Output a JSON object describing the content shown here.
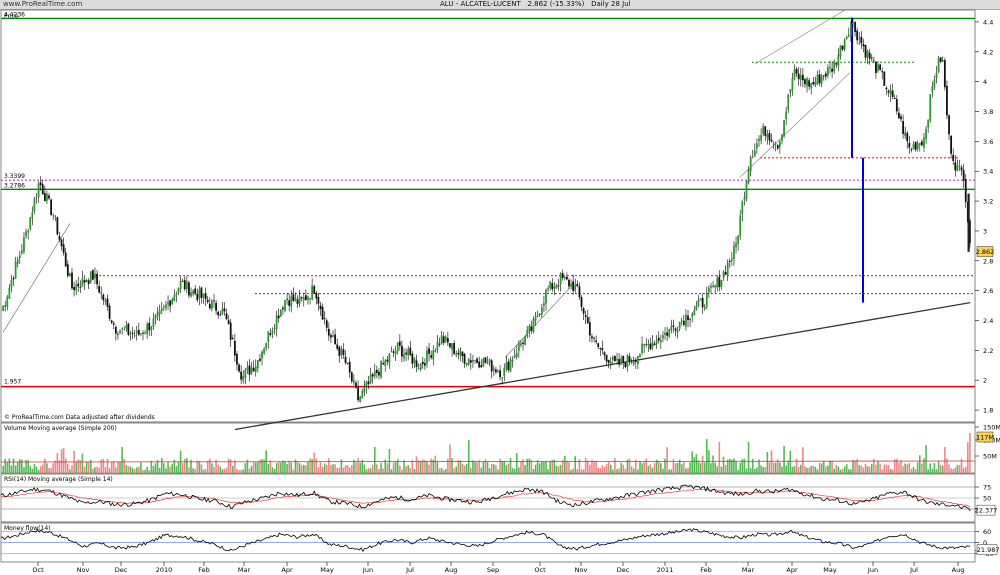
{
  "header": {
    "site": "www.ProRealTime.com",
    "title": "ALU - ALCATEL-LUCENT",
    "last": "2.862 (-15.33%)",
    "period": "Daily 28 Jul"
  },
  "chart_data": [
    {
      "type": "candlestick",
      "title": "Price",
      "ylim": [
        1.72,
        4.48
      ],
      "y_ticks": [
        1.8,
        2,
        2.2,
        2.4,
        2.6,
        2.8,
        3,
        3.2,
        3.4,
        3.6,
        3.8,
        4,
        4.2,
        4.4
      ],
      "x_tick_labels": [
        "Oct",
        "Nov",
        "Dec",
        "2010",
        "Feb",
        "Mar",
        "Apr",
        "May",
        "Jun",
        "Jul",
        "Aug",
        "Sep",
        "Oct",
        "Nov",
        "Dec",
        "2011",
        "Feb",
        "Mar",
        "Apr",
        "May",
        "Jun",
        "Jul",
        "Aug"
      ],
      "last_price": "2.862",
      "level_labels": [
        "4.4236",
        "3.3399",
        "3.2786",
        "1.957"
      ],
      "levels": [
        {
          "value": 4.4236,
          "color": "#008800",
          "style": "solid"
        },
        {
          "value": 3.3399,
          "color": "#cc33cc",
          "style": "dotted"
        },
        {
          "value": 3.2786,
          "color": "#008800",
          "style": "solid"
        },
        {
          "value": 1.957,
          "color": "#dd0000",
          "style": "solid"
        },
        {
          "value": 2.7,
          "color": "#ee2222",
          "style": "dotted"
        },
        {
          "value": 2.58,
          "color": "#3333cc",
          "style": "dotted"
        },
        {
          "value": 3.49,
          "color": "#ee2222",
          "style": "dotted"
        },
        {
          "value": 4.13,
          "color": "#009900",
          "style": "dotted"
        }
      ],
      "trendline": {
        "from": [
          "Mar 2010",
          1.67
        ],
        "to": [
          "Jul 2011",
          2.52
        ]
      },
      "note": "© ProRealTime.com   Data adjusted after dividends",
      "series": [
        {
          "name": "close",
          "points": [
            [
              "Sep 2009",
              2.34
            ],
            [
              "Oct 2009",
              2.95
            ],
            [
              "Oct 2009",
              3.33
            ],
            [
              "Oct 2009",
              3.1
            ],
            [
              "Nov 2009",
              2.62
            ],
            [
              "Nov 2009",
              2.7
            ],
            [
              "Dec 2009",
              2.35
            ],
            [
              "Dec 2009",
              2.3
            ],
            [
              "Jan 2010",
              2.42
            ],
            [
              "Jan 2010",
              2.65
            ],
            [
              "Feb 2010",
              2.55
            ],
            [
              "Feb 2010",
              2.45
            ],
            [
              "Mar 2010",
              2.02
            ],
            [
              "Mar 2010",
              2.12
            ],
            [
              "Mar 2010",
              2.35
            ],
            [
              "Apr 2010",
              2.55
            ],
            [
              "Apr 2010",
              2.52
            ],
            [
              "Apr 2010",
              2.62
            ],
            [
              "May 2010",
              2.3
            ],
            [
              "May 2010",
              2.15
            ],
            [
              "May 2010",
              1.87
            ],
            [
              "Jun 2010",
              2.05
            ],
            [
              "Jun 2010",
              2.22
            ],
            [
              "Jul 2010",
              2.1
            ],
            [
              "Jul 2010",
              2.28
            ],
            [
              "Aug 2010",
              2.15
            ],
            [
              "Aug 2010",
              2.12
            ],
            [
              "Sep 2010",
              2.05
            ],
            [
              "Sep 2010",
              2.22
            ],
            [
              "Sep 2010",
              2.35
            ],
            [
              "Oct 2010",
              2.6
            ],
            [
              "Oct 2010",
              2.68
            ],
            [
              "Oct 2010",
              2.62
            ],
            [
              "Nov 2010",
              2.25
            ],
            [
              "Nov 2010",
              2.1
            ],
            [
              "Dec 2010",
              2.15
            ],
            [
              "Dec 2010",
              2.24
            ],
            [
              "Dec 2010",
              2.3
            ],
            [
              "Jan 2011",
              2.4
            ],
            [
              "Jan 2011",
              2.52
            ],
            [
              "Feb 2011",
              2.68
            ],
            [
              "Feb 2011",
              2.88
            ],
            [
              "Feb 2011",
              3.5
            ],
            [
              "Mar 2011",
              3.68
            ],
            [
              "Mar 2011",
              3.58
            ],
            [
              "Mar 2011",
              4.05
            ],
            [
              "Apr 2011",
              3.98
            ],
            [
              "Apr 2011",
              4.1
            ],
            [
              "May 2011",
              4.4
            ],
            [
              "May 2011",
              4.2
            ],
            [
              "May 2011",
              4.05
            ],
            [
              "Jun 2011",
              3.85
            ],
            [
              "Jun 2011",
              3.55
            ],
            [
              "Jun 2011",
              3.62
            ],
            [
              "Jul 2011",
              4.05
            ],
            [
              "Jul 2011",
              4.18
            ],
            [
              "Jul 2011",
              3.6
            ],
            [
              "Jul 2011",
              3.42
            ],
            [
              "Jul 2011",
              3.38
            ],
            [
              "Jul 2011",
              2.86
            ]
          ]
        }
      ]
    },
    {
      "type": "bar",
      "title": "Volume Moving average (Simple 200)",
      "y_tick_labels": [
        "150M",
        "100M",
        "50M"
      ],
      "last_value": "117M"
    },
    {
      "type": "line",
      "title": "RSI(14)",
      "overlay": "Moving average (Simple 14)",
      "y_tick_labels": [
        "75",
        "50",
        "25"
      ],
      "last_value": "22.377",
      "series": [
        {
          "name": "RSI(14)",
          "values": [
            55,
            62,
            70,
            66,
            52,
            38,
            42,
            35,
            36,
            44,
            60,
            58,
            48,
            44,
            30,
            42,
            50,
            62,
            56,
            62,
            42,
            38,
            30,
            44,
            52,
            46,
            56,
            48,
            44,
            40,
            52,
            62,
            70,
            64,
            40,
            34,
            42,
            48,
            55,
            62,
            68,
            72,
            76,
            70,
            62,
            58,
            66,
            64,
            70,
            58,
            48,
            44,
            36,
            46,
            60,
            64,
            44,
            36,
            34,
            22
          ]
        },
        {
          "name": "Moving average (Simple 14)",
          "values": [
            52,
            56,
            62,
            64,
            58,
            50,
            45,
            40,
            38,
            40,
            48,
            54,
            52,
            48,
            40,
            40,
            44,
            52,
            54,
            58,
            50,
            44,
            38,
            40,
            46,
            46,
            50,
            48,
            46,
            44,
            48,
            54,
            60,
            62,
            54,
            44,
            40,
            44,
            48,
            54,
            60,
            64,
            68,
            70,
            66,
            62,
            62,
            63,
            66,
            62,
            56,
            50,
            44,
            44,
            50,
            56,
            52,
            44,
            38,
            32
          ]
        }
      ]
    },
    {
      "type": "line",
      "title": "Money flow(14)",
      "y_tick_labels": [
        "60",
        "0",
        "-60"
      ],
      "last_value": "-21.987",
      "series": [
        {
          "name": "Money flow(14)",
          "values": [
            20,
            40,
            65,
            55,
            20,
            -20,
            -5,
            -30,
            -25,
            0,
            40,
            35,
            10,
            -10,
            -45,
            -10,
            15,
            45,
            30,
            45,
            -10,
            -20,
            -40,
            -5,
            15,
            0,
            25,
            5,
            -10,
            -20,
            10,
            35,
            55,
            45,
            -20,
            -35,
            -15,
            0,
            15,
            35,
            45,
            55,
            70,
            55,
            35,
            25,
            45,
            40,
            60,
            30,
            5,
            -5,
            -30,
            -5,
            35,
            45,
            0,
            -25,
            -30,
            -22
          ]
        }
      ]
    }
  ]
}
